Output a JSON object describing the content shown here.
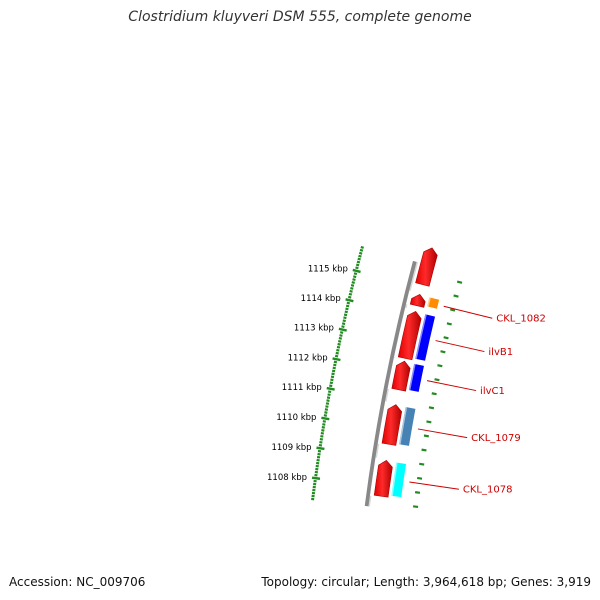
{
  "title": "Clostridium kluyveri DSM 555, complete genome",
  "footer": {
    "accession": "Accession: NC_009706",
    "summary": "Topology: circular; Length: 3,964,618 bp; Genes: 3,919"
  },
  "axis": {
    "ticks": [
      {
        "label": "1108 kbp",
        "kbp": 1108
      },
      {
        "label": "1109 kbp",
        "kbp": 1109
      },
      {
        "label": "1110 kbp",
        "kbp": 1110
      },
      {
        "label": "1111 kbp",
        "kbp": 1111
      },
      {
        "label": "1112 kbp",
        "kbp": 1112
      },
      {
        "label": "1113 kbp",
        "kbp": 1113
      },
      {
        "label": "1114 kbp",
        "kbp": 1114
      },
      {
        "label": "1115 kbp",
        "kbp": 1115
      }
    ]
  },
  "genes": [
    {
      "name": "CKL_1078",
      "start_kbp": 1107.7,
      "end_kbp": 1108.94,
      "color": "#00ffff"
    },
    {
      "name": "CKL_1079",
      "start_kbp": 1109.5,
      "end_kbp": 1110.88,
      "color": "#4682b4"
    },
    {
      "name": "ilvC1",
      "start_kbp": 1111.4,
      "end_kbp": 1112.4,
      "color": "#0000ff"
    },
    {
      "name": "ilvB1",
      "start_kbp": 1112.5,
      "end_kbp": 1114.15,
      "color": "#0000ff"
    },
    {
      "name": "CKL_1082",
      "start_kbp": 1114.35,
      "end_kbp": 1114.75,
      "color": "#ff8c00"
    }
  ],
  "extra_cds_start_kbp": 1115.1,
  "colors": {
    "cds": "#ff0000",
    "backbone": "#888888",
    "tick": "#228b22",
    "label": "#cc0000"
  }
}
